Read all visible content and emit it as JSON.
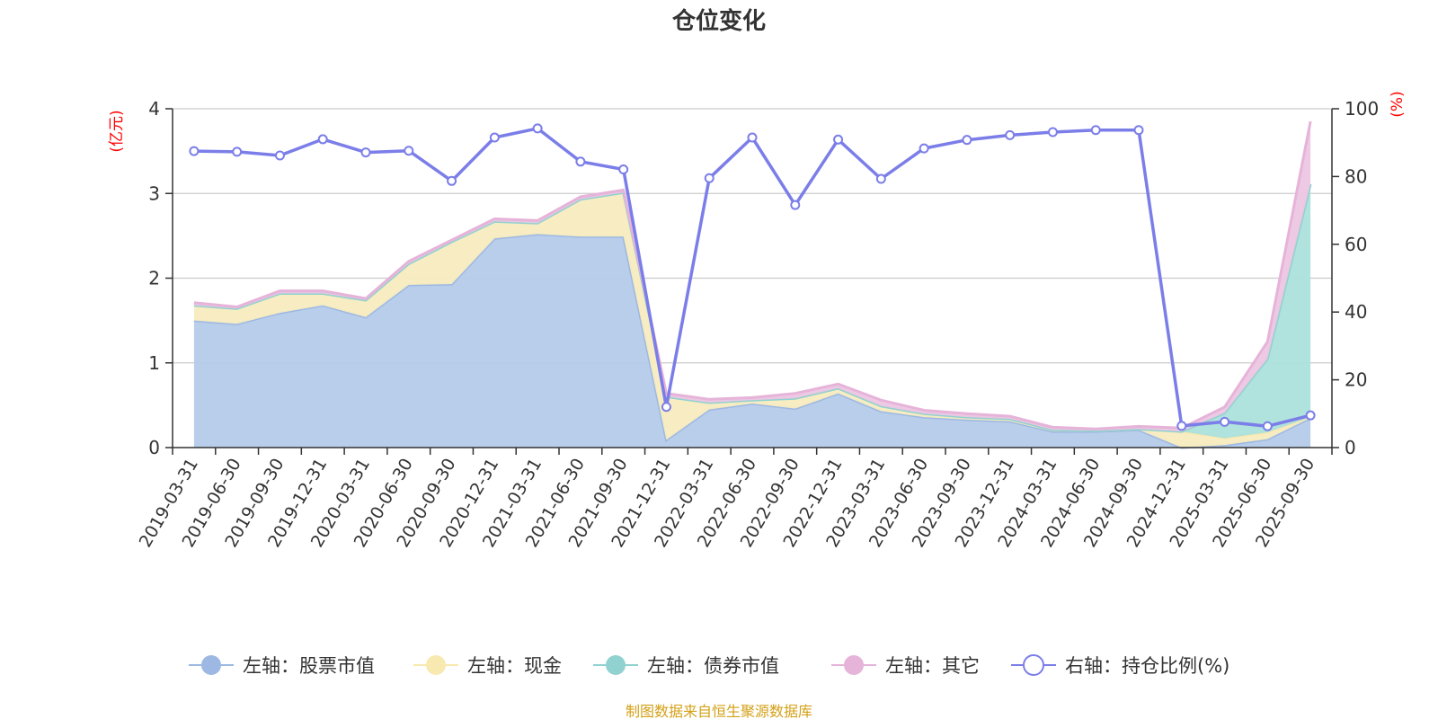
{
  "title": "仓位变化",
  "source": "制图数据来自恒生聚源数据库",
  "left_unit": "(亿元)",
  "right_unit": "(%)",
  "colors": {
    "stock": "#9db8e3",
    "stock_fill": "#b5cbea",
    "cash": "#f8e9b0",
    "cash_fill": "#f8ecbf",
    "bond": "#91d2d0",
    "bond_fill": "#ace0dc",
    "other": "#e6b3d9",
    "other_fill": "#edc6e3",
    "ratio": "#7b7ee8",
    "left_unit": "#ff0000",
    "source": "#d4a017"
  },
  "legend": [
    {
      "key": "stock",
      "label": "左轴：股票市值",
      "icon": "filled-circle"
    },
    {
      "key": "cash",
      "label": "左轴：现金",
      "icon": "filled-circle"
    },
    {
      "key": "bond",
      "label": "左轴：债券市值",
      "icon": "filled-circle"
    },
    {
      "key": "other",
      "label": "左轴：其它",
      "icon": "filled-circle"
    },
    {
      "key": "ratio",
      "label": "右轴：持仓比例(%)",
      "icon": "hollow-circle"
    }
  ],
  "chart_data": {
    "type": "area",
    "title": "仓位变化",
    "categories": [
      "2019-03-31",
      "2019-06-30",
      "2019-09-30",
      "2019-12-31",
      "2020-03-31",
      "2020-06-30",
      "2020-09-30",
      "2020-12-31",
      "2021-03-31",
      "2021-06-30",
      "2021-09-30",
      "2021-12-31",
      "2022-03-31",
      "2022-06-30",
      "2022-09-30",
      "2022-12-31",
      "2023-03-31",
      "2023-06-30",
      "2023-09-30",
      "2023-12-31",
      "2024-03-31",
      "2024-06-30",
      "2024-09-30",
      "2024-12-31",
      "2025-03-31",
      "2025-06-30",
      "2025-09-30"
    ],
    "left_axis": {
      "ylim": [
        0,
        4
      ],
      "ticks": [
        0,
        1,
        2,
        3,
        4
      ],
      "unit": "(亿元)"
    },
    "right_axis": {
      "ylim": [
        0,
        100
      ],
      "ticks": [
        0,
        20,
        40,
        60,
        80,
        100
      ],
      "unit": "(%)"
    },
    "grid": true,
    "legend_position": "bottom",
    "stacked_series": [
      {
        "name": "左轴：股票市值",
        "key": "stock",
        "axis": "left",
        "values": [
          1.5,
          1.46,
          1.59,
          1.68,
          1.54,
          1.92,
          1.93,
          2.47,
          2.52,
          2.49,
          2.49,
          0.09,
          0.45,
          0.52,
          0.46,
          0.64,
          0.43,
          0.36,
          0.33,
          0.31,
          0.19,
          0.19,
          0.21,
          0.0,
          0.03,
          0.1,
          0.35
        ]
      },
      {
        "name": "左轴：现金",
        "key": "cash",
        "axis": "left",
        "values": [
          0.18,
          0.18,
          0.23,
          0.14,
          0.2,
          0.25,
          0.5,
          0.2,
          0.13,
          0.44,
          0.52,
          0.51,
          0.08,
          0.04,
          0.12,
          0.06,
          0.06,
          0.04,
          0.03,
          0.03,
          0.02,
          0.01,
          0.01,
          0.19,
          0.08,
          0.08,
          0.01
        ]
      },
      {
        "name": "左轴：债券市值",
        "key": "bond",
        "axis": "left",
        "values": [
          0,
          0,
          0,
          0,
          0,
          0,
          0,
          0,
          0,
          0,
          0,
          0,
          0,
          0,
          0,
          0,
          0,
          0,
          0,
          0,
          0,
          0,
          0,
          0.0,
          0.3,
          0.87,
          2.75
        ]
      },
      {
        "name": "左轴：其它",
        "key": "other",
        "axis": "left",
        "values": [
          0.03,
          0.02,
          0.03,
          0.03,
          0.02,
          0.03,
          0.02,
          0.03,
          0.03,
          0.03,
          0.03,
          0.04,
          0.04,
          0.03,
          0.06,
          0.05,
          0.07,
          0.04,
          0.04,
          0.03,
          0.03,
          0.02,
          0.03,
          0.04,
          0.07,
          0.2,
          0.74
        ]
      }
    ],
    "line_series": {
      "name": "右轴：持仓比例(%)",
      "key": "ratio",
      "axis": "right",
      "values": [
        87.5,
        87.3,
        86.2,
        91.0,
        87.1,
        87.6,
        78.7,
        91.5,
        94.2,
        84.4,
        82.1,
        12.0,
        79.5,
        91.5,
        71.6,
        90.9,
        79.3,
        88.3,
        90.8,
        92.2,
        93.1,
        93.7,
        93.7,
        6.4,
        7.6,
        6.3,
        9.5
      ]
    }
  }
}
